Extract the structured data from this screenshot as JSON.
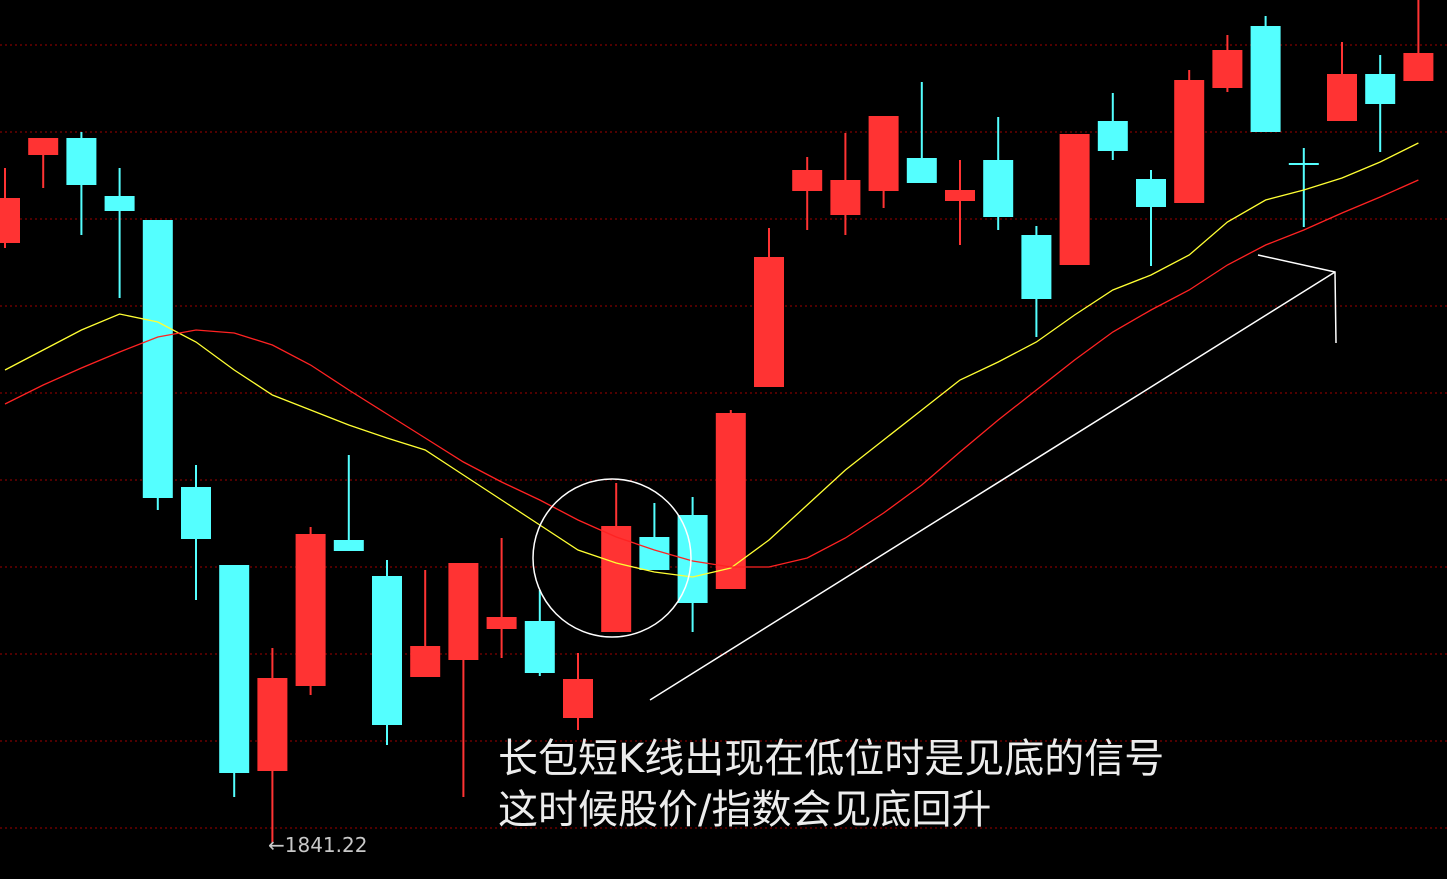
{
  "chart_data": {
    "type": "candlestick",
    "open": [
      2021.1,
      2047.5,
      2052.6,
      2035.2,
      2028,
      1947.9,
      1924.5,
      1862.7,
      1888.2,
      1932,
      1921.2,
      1890.9,
      1896,
      1905.3,
      1907.7,
      1878.6,
      1904.4,
      1932.9,
      1939.5,
      1917.3,
      1977.9,
      2036.7,
      2029.5,
      2036.7,
      2046.6,
      2033.7,
      2046,
      2023.5,
      2014.5,
      2057.7,
      2040.3,
      2033.1,
      2067.6,
      2086.2,
      2045.1,
      2057.7,
      2071.8,
      2069.7
    ],
    "high": [
      2043.6,
      2052.6,
      2054.4,
      2043.6,
      2028,
      1954.5,
      1924.5,
      1899.6,
      1935.9,
      1957.5,
      1926,
      1923,
      1925.1,
      1932.6,
      1917,
      1898.1,
      1949.1,
      1943.1,
      1944.9,
      1971,
      2025.6,
      2046.9,
      2054.1,
      2059.2,
      2069.4,
      2046,
      2058.9,
      2026.2,
      2053.8,
      2066.1,
      2043,
      2073,
      2083.5,
      2089.2,
      2049.6,
      2081.4,
      2077.5,
      2094
    ],
    "low": [
      2019.6,
      2037.6,
      2023.5,
      2004.6,
      1941,
      1914,
      1854.9,
      1841.22,
      1885.5,
      1928.7,
      1870.5,
      1890.9,
      1854.9,
      1896.6,
      1891.2,
      1875,
      1904.4,
      1923,
      1904.4,
      1917.3,
      1977.9,
      2025,
      2023.5,
      2031.6,
      2039.1,
      2020.5,
      2025,
      1992.9,
      2014.5,
      2046,
      2014.2,
      2033.1,
      2066.4,
      2054.4,
      2025.9,
      2057.7,
      2048.4,
      2069.7
    ],
    "close": [
      2034.6,
      2052.6,
      2038.5,
      2030.7,
      1944.6,
      1932.3,
      1862.1,
      1890.6,
      1933.8,
      1928.7,
      1876.5,
      1900.2,
      1925.1,
      1908.9,
      1892.1,
      1890.3,
      1936.2,
      1923,
      1913.1,
      1970.1,
      2016.9,
      2043,
      2040,
      2059.2,
      2039.1,
      2037,
      2028.9,
      2004.3,
      2053.8,
      2048.7,
      2031.9,
      2070,
      2079,
      2054.4,
      2044.8,
      2071.8,
      2062.8,
      2078.1
    ],
    "up_color": "#ff3333",
    "down_color": "#54ffff",
    "lines": [
      {
        "color": "#ffff33",
        "values": [
          1983,
          1989,
          1995,
          1999.8,
          1997.4,
          1991.4,
          1983,
          1975.5,
          1971,
          1966.5,
          1962.6,
          1959,
          1951.5,
          1944,
          1936.5,
          1929,
          1925.1,
          1922.4,
          1920.9,
          1923.6,
          1932,
          1942.5,
          1953,
          1962,
          1971,
          1980,
          1985.4,
          1991.4,
          1999.5,
          2007,
          2011.5,
          2017.5,
          2027.4,
          2034,
          2037,
          2040.6,
          2045.4,
          2051.1
        ]
      },
      {
        "color": "#ff2222",
        "values": [
          1972.8,
          1978.5,
          1983.6,
          1988.4,
          1992.9,
          1995,
          1994.1,
          1990.5,
          1984.5,
          1977,
          1969.8,
          1962.6,
          1955.4,
          1949.4,
          1944,
          1938,
          1932.9,
          1929,
          1925.7,
          1923.9,
          1923.9,
          1926.6,
          1932.6,
          1940.1,
          1948.5,
          1958.4,
          1968,
          1977,
          1986,
          1994.4,
          2001,
          2007,
          2014.5,
          2020.5,
          2025,
          2030.1,
          2034.9,
          2040
        ]
      }
    ],
    "ylim": [
      1830.3,
      2094
    ],
    "grid": true,
    "low_label": "←1841.22",
    "annotations": [
      "长包短K线出现在低位时是见底的信号",
      "这时候股价/指数会见底回升"
    ]
  }
}
